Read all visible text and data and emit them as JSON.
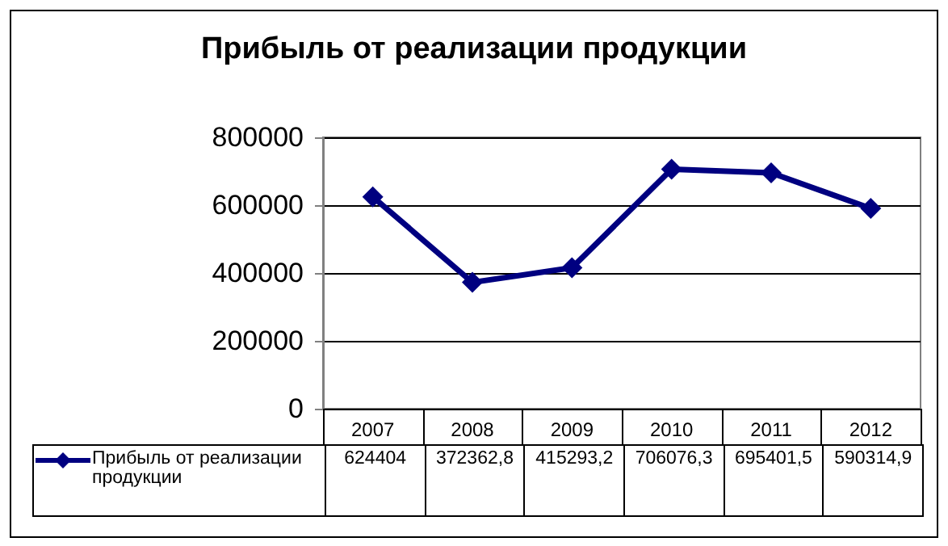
{
  "chart_data": {
    "type": "line",
    "title": "Прибыль от реализации продукции",
    "categories": [
      "2007",
      "2008",
      "2009",
      "2010",
      "2011",
      "2012"
    ],
    "series": [
      {
        "name": "Прибыль от реализации продукции",
        "color": "#000080",
        "values": [
          624404,
          372362.8,
          415293.2,
          706076.3,
          695401.5,
          590314.9
        ],
        "value_labels": [
          "624404",
          "372362,8",
          "415293,2",
          "706076,3",
          "695401,5",
          "590314,9"
        ]
      }
    ],
    "ylim": [
      0,
      800000
    ],
    "yticks": [
      0,
      200000,
      400000,
      600000,
      800000
    ],
    "grid": "y",
    "legend": "bottom",
    "marker": "diamond",
    "line_style": "solid"
  }
}
